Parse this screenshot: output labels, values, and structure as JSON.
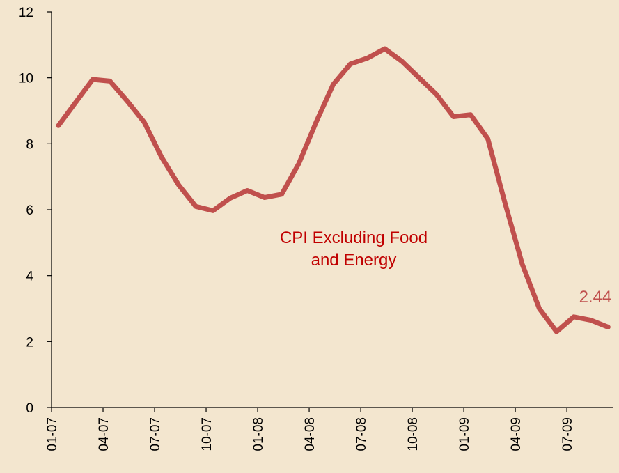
{
  "chart_data": {
    "type": "line",
    "categories": [
      "01-07",
      null,
      null,
      "04-07",
      null,
      null,
      "07-07",
      null,
      null,
      "10-07",
      null,
      null,
      "01-08",
      null,
      null,
      "04-08",
      null,
      null,
      "07-08",
      null,
      null,
      "10-08",
      null,
      null,
      "01-09",
      null,
      null,
      "04-09",
      null,
      null,
      "07-09",
      null,
      null
    ],
    "series": [
      {
        "name": "CPI Excluding Food and Energy",
        "color": "#c0504d",
        "values": [
          8.55,
          9.25,
          9.95,
          9.9,
          9.3,
          8.65,
          7.6,
          6.75,
          6.1,
          5.97,
          6.35,
          6.58,
          6.37,
          6.47,
          7.4,
          8.65,
          9.8,
          10.42,
          10.6,
          10.88,
          10.5,
          10.0,
          9.5,
          8.82,
          8.88,
          8.15,
          6.2,
          4.35,
          3.0,
          2.3,
          2.75,
          2.65,
          2.44
        ]
      }
    ],
    "annotation": [
      "CPI Excluding Food",
      "and Energy"
    ],
    "annotation_color": "#c00000",
    "ylim": [
      0,
      12
    ],
    "yticks": [
      0,
      2,
      4,
      6,
      8,
      10,
      12
    ],
    "grid": false
  }
}
